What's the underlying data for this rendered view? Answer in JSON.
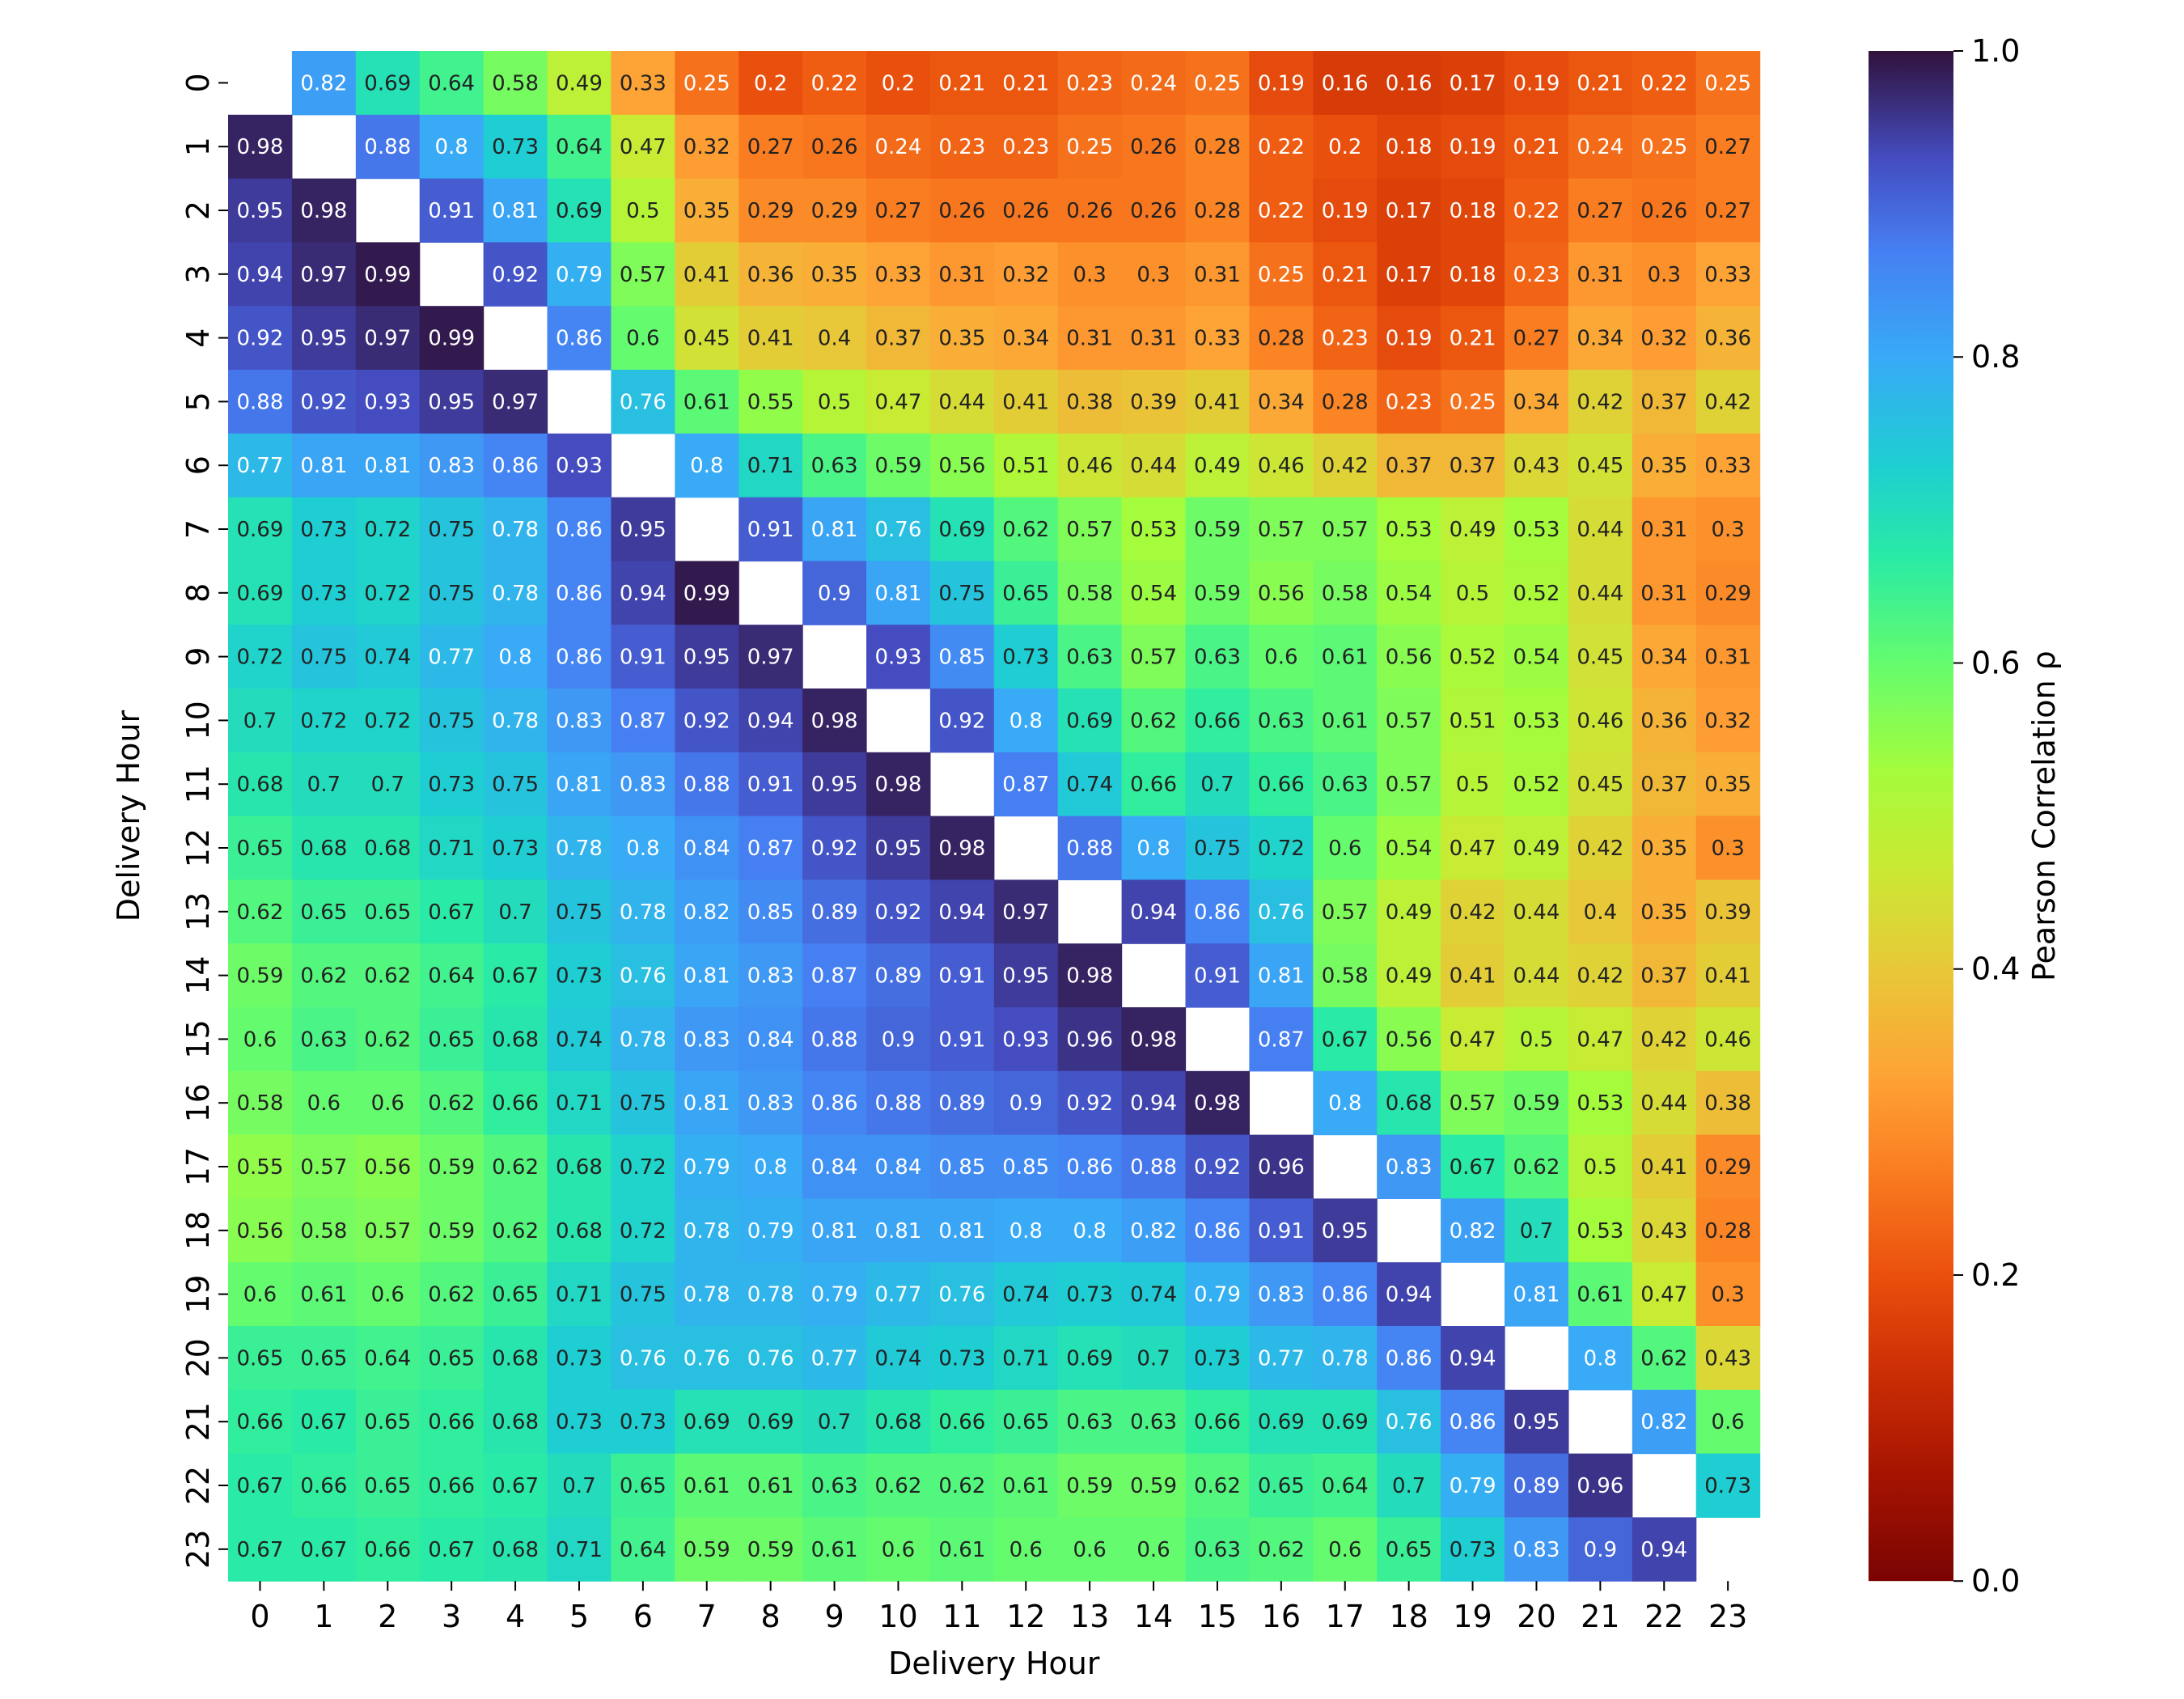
{
  "chart_data": {
    "type": "heatmap",
    "xlabel": "Delivery Hour",
    "ylabel": "Delivery Hour",
    "x_categories": [
      "0",
      "1",
      "2",
      "3",
      "4",
      "5",
      "6",
      "7",
      "8",
      "9",
      "10",
      "11",
      "12",
      "13",
      "14",
      "15",
      "16",
      "17",
      "18",
      "19",
      "20",
      "21",
      "22",
      "23"
    ],
    "y_categories": [
      "0",
      "1",
      "2",
      "3",
      "4",
      "5",
      "6",
      "7",
      "8",
      "9",
      "10",
      "11",
      "12",
      "13",
      "14",
      "15",
      "16",
      "17",
      "18",
      "19",
      "20",
      "21",
      "22",
      "23"
    ],
    "colorbar": {
      "label": "Pearson Correlation ρ",
      "range": [
        0.0,
        1.0
      ],
      "ticks": [
        "0.0",
        "0.2",
        "0.4",
        "0.6",
        "0.8",
        "1.0"
      ],
      "colormap": "turbo (reversed)"
    },
    "diagonal": "blank",
    "values": [
      [
        null,
        0.82,
        0.69,
        0.64,
        0.58,
        0.49,
        0.33,
        0.25,
        0.2,
        0.22,
        0.2,
        0.21,
        0.21,
        0.23,
        0.24,
        0.25,
        0.19,
        0.16,
        0.16,
        0.17,
        0.19,
        0.21,
        0.22,
        0.25
      ],
      [
        0.98,
        null,
        0.88,
        0.8,
        0.73,
        0.64,
        0.47,
        0.32,
        0.27,
        0.26,
        0.24,
        0.23,
        0.23,
        0.25,
        0.26,
        0.28,
        0.22,
        0.2,
        0.18,
        0.19,
        0.21,
        0.24,
        0.25,
        0.27
      ],
      [
        0.95,
        0.98,
        null,
        0.91,
        0.81,
        0.69,
        0.5,
        0.35,
        0.29,
        0.29,
        0.27,
        0.26,
        0.26,
        0.26,
        0.26,
        0.28,
        0.22,
        0.19,
        0.17,
        0.18,
        0.22,
        0.27,
        0.26,
        0.27
      ],
      [
        0.94,
        0.97,
        0.99,
        null,
        0.92,
        0.79,
        0.57,
        0.41,
        0.36,
        0.35,
        0.33,
        0.31,
        0.32,
        0.3,
        0.3,
        0.31,
        0.25,
        0.21,
        0.17,
        0.18,
        0.23,
        0.31,
        0.3,
        0.33
      ],
      [
        0.92,
        0.95,
        0.97,
        0.99,
        null,
        0.86,
        0.6,
        0.45,
        0.41,
        0.4,
        0.37,
        0.35,
        0.34,
        0.31,
        0.31,
        0.33,
        0.28,
        0.23,
        0.19,
        0.21,
        0.27,
        0.34,
        0.32,
        0.36
      ],
      [
        0.88,
        0.92,
        0.93,
        0.95,
        0.97,
        null,
        0.76,
        0.61,
        0.55,
        0.5,
        0.47,
        0.44,
        0.41,
        0.38,
        0.39,
        0.41,
        0.34,
        0.28,
        0.23,
        0.25,
        0.34,
        0.42,
        0.37,
        0.42
      ],
      [
        0.77,
        0.81,
        0.81,
        0.83,
        0.86,
        0.93,
        null,
        0.8,
        0.71,
        0.63,
        0.59,
        0.56,
        0.51,
        0.46,
        0.44,
        0.49,
        0.46,
        0.42,
        0.37,
        0.37,
        0.43,
        0.45,
        0.35,
        0.33
      ],
      [
        0.69,
        0.73,
        0.72,
        0.75,
        0.78,
        0.86,
        0.95,
        null,
        0.91,
        0.81,
        0.76,
        0.69,
        0.62,
        0.57,
        0.53,
        0.59,
        0.57,
        0.57,
        0.53,
        0.49,
        0.53,
        0.44,
        0.31,
        0.3
      ],
      [
        0.69,
        0.73,
        0.72,
        0.75,
        0.78,
        0.86,
        0.94,
        0.99,
        null,
        0.9,
        0.81,
        0.75,
        0.65,
        0.58,
        0.54,
        0.59,
        0.56,
        0.58,
        0.54,
        0.5,
        0.52,
        0.44,
        0.31,
        0.29
      ],
      [
        0.72,
        0.75,
        0.74,
        0.77,
        0.8,
        0.86,
        0.91,
        0.95,
        0.97,
        null,
        0.93,
        0.85,
        0.73,
        0.63,
        0.57,
        0.63,
        0.6,
        0.61,
        0.56,
        0.52,
        0.54,
        0.45,
        0.34,
        0.31
      ],
      [
        0.7,
        0.72,
        0.72,
        0.75,
        0.78,
        0.83,
        0.87,
        0.92,
        0.94,
        0.98,
        null,
        0.92,
        0.8,
        0.69,
        0.62,
        0.66,
        0.63,
        0.61,
        0.57,
        0.51,
        0.53,
        0.46,
        0.36,
        0.32
      ],
      [
        0.68,
        0.7,
        0.7,
        0.73,
        0.75,
        0.81,
        0.83,
        0.88,
        0.91,
        0.95,
        0.98,
        null,
        0.87,
        0.74,
        0.66,
        0.7,
        0.66,
        0.63,
        0.57,
        0.5,
        0.52,
        0.45,
        0.37,
        0.35
      ],
      [
        0.65,
        0.68,
        0.68,
        0.71,
        0.73,
        0.78,
        0.8,
        0.84,
        0.87,
        0.92,
        0.95,
        0.98,
        null,
        0.88,
        0.8,
        0.75,
        0.72,
        0.6,
        0.54,
        0.47,
        0.49,
        0.42,
        0.35,
        0.3
      ],
      [
        0.62,
        0.65,
        0.65,
        0.67,
        0.7,
        0.75,
        0.78,
        0.82,
        0.85,
        0.89,
        0.92,
        0.94,
        0.97,
        null,
        0.94,
        0.86,
        0.76,
        0.57,
        0.49,
        0.42,
        0.44,
        0.4,
        0.35,
        0.39
      ],
      [
        0.59,
        0.62,
        0.62,
        0.64,
        0.67,
        0.73,
        0.76,
        0.81,
        0.83,
        0.87,
        0.89,
        0.91,
        0.95,
        0.98,
        null,
        0.91,
        0.81,
        0.58,
        0.49,
        0.41,
        0.44,
        0.42,
        0.37,
        0.41
      ],
      [
        0.6,
        0.63,
        0.62,
        0.65,
        0.68,
        0.74,
        0.78,
        0.83,
        0.84,
        0.88,
        0.9,
        0.91,
        0.93,
        0.96,
        0.98,
        null,
        0.87,
        0.67,
        0.56,
        0.47,
        0.5,
        0.47,
        0.42,
        0.46
      ],
      [
        0.58,
        0.6,
        0.6,
        0.62,
        0.66,
        0.71,
        0.75,
        0.81,
        0.83,
        0.86,
        0.88,
        0.89,
        0.9,
        0.92,
        0.94,
        0.98,
        null,
        0.8,
        0.68,
        0.57,
        0.59,
        0.53,
        0.44,
        0.38
      ],
      [
        0.55,
        0.57,
        0.56,
        0.59,
        0.62,
        0.68,
        0.72,
        0.79,
        0.8,
        0.84,
        0.84,
        0.85,
        0.85,
        0.86,
        0.88,
        0.92,
        0.96,
        null,
        0.83,
        0.67,
        0.62,
        0.5,
        0.41,
        0.29
      ],
      [
        0.56,
        0.58,
        0.57,
        0.59,
        0.62,
        0.68,
        0.72,
        0.78,
        0.79,
        0.81,
        0.81,
        0.81,
        0.8,
        0.8,
        0.82,
        0.86,
        0.91,
        0.95,
        null,
        0.82,
        0.7,
        0.53,
        0.43,
        0.28
      ],
      [
        0.6,
        0.61,
        0.6,
        0.62,
        0.65,
        0.71,
        0.75,
        0.78,
        0.78,
        0.79,
        0.77,
        0.76,
        0.74,
        0.73,
        0.74,
        0.79,
        0.83,
        0.86,
        0.94,
        null,
        0.81,
        0.61,
        0.47,
        0.3
      ],
      [
        0.65,
        0.65,
        0.64,
        0.65,
        0.68,
        0.73,
        0.76,
        0.76,
        0.76,
        0.77,
        0.74,
        0.73,
        0.71,
        0.69,
        0.7,
        0.73,
        0.77,
        0.78,
        0.86,
        0.94,
        null,
        0.8,
        0.62,
        0.43
      ],
      [
        0.66,
        0.67,
        0.65,
        0.66,
        0.68,
        0.73,
        0.73,
        0.69,
        0.69,
        0.7,
        0.68,
        0.66,
        0.65,
        0.63,
        0.63,
        0.66,
        0.69,
        0.69,
        0.76,
        0.86,
        0.95,
        null,
        0.82,
        0.6
      ],
      [
        0.67,
        0.66,
        0.65,
        0.66,
        0.67,
        0.7,
        0.65,
        0.61,
        0.61,
        0.63,
        0.62,
        0.62,
        0.61,
        0.59,
        0.59,
        0.62,
        0.65,
        0.64,
        0.7,
        0.79,
        0.89,
        0.96,
        null,
        0.73
      ],
      [
        0.67,
        0.67,
        0.66,
        0.67,
        0.68,
        0.71,
        0.64,
        0.59,
        0.59,
        0.61,
        0.6,
        0.61,
        0.6,
        0.6,
        0.6,
        0.63,
        0.62,
        0.6,
        0.65,
        0.73,
        0.83,
        0.9,
        0.94,
        null
      ]
    ]
  }
}
